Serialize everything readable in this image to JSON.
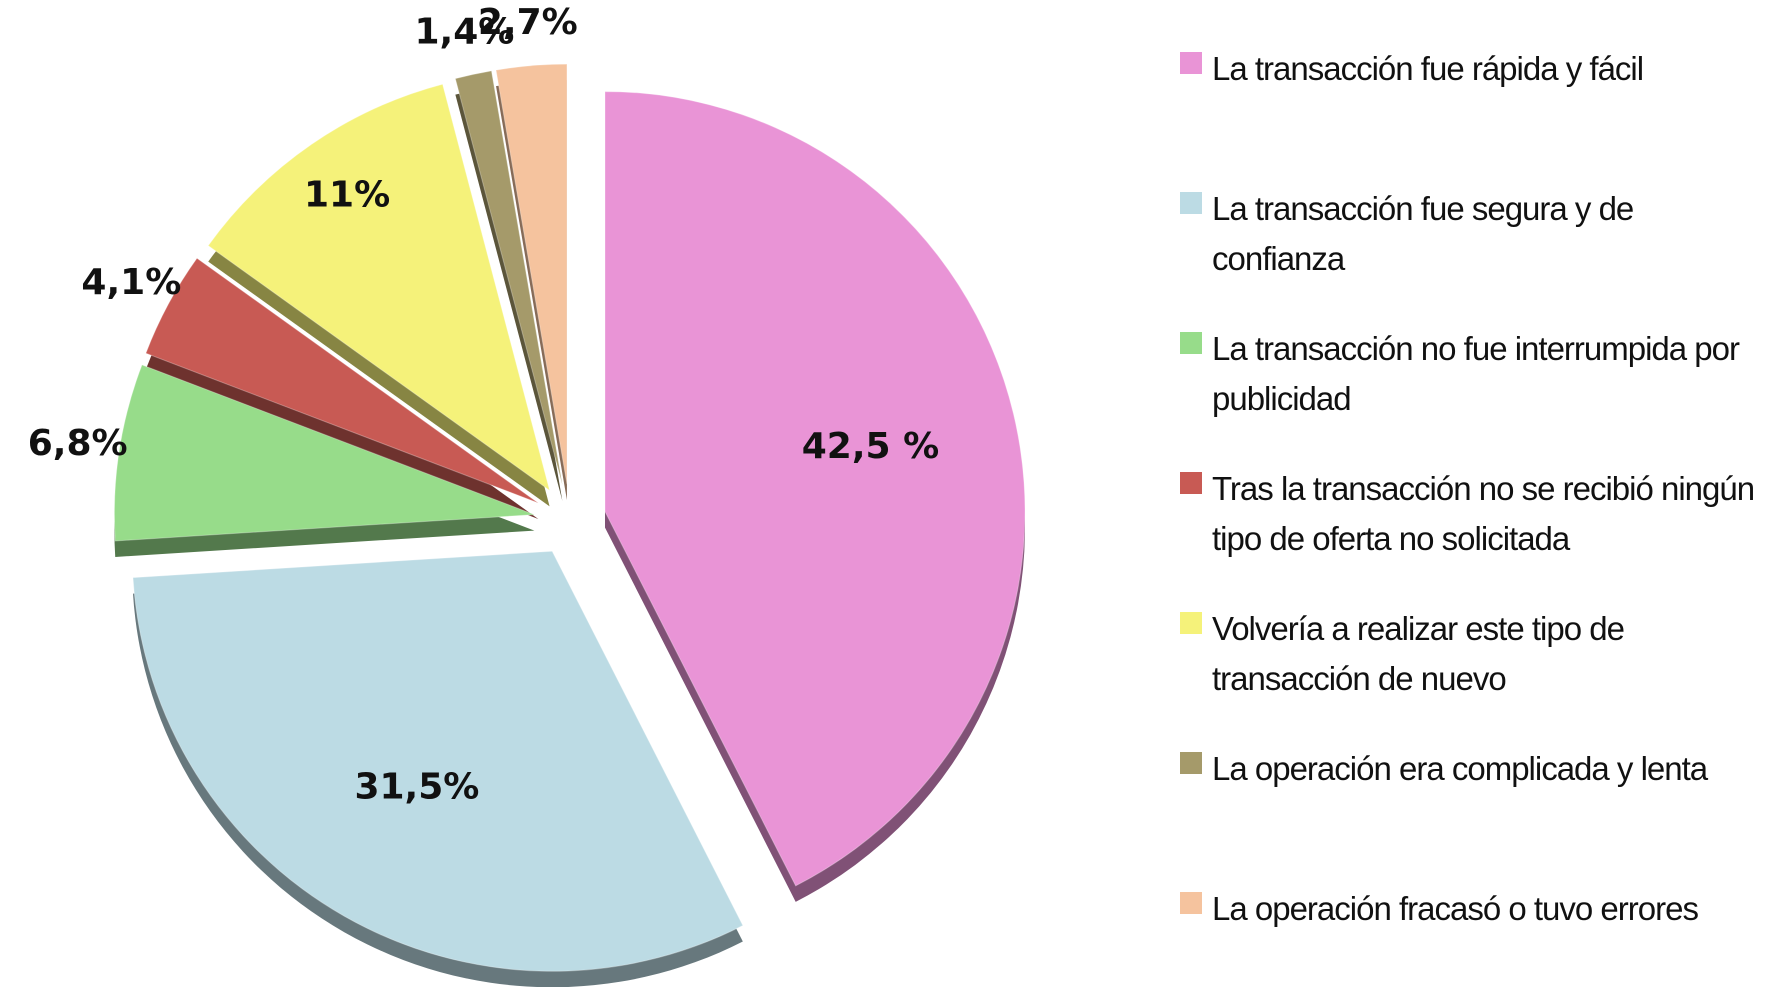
{
  "chart_data": {
    "type": "pie",
    "categories": [
      "La transacción fue rápida y fácil",
      "La transacción fue segura y de confianza",
      "La transacción no fue interrumpida por publicidad",
      "Tras la transacción no se recibió ningún tipo de oferta no solicitada",
      "Volvería a realizar este tipo de transacción de nuevo",
      "La operación era complicada y lenta",
      "La operación fracasó o tuvo errores"
    ],
    "values": [
      42.5,
      31.5,
      6.8,
      4.1,
      11,
      1.4,
      2.7
    ],
    "value_labels": [
      "42,5 %",
      "31,5%",
      "6,8%",
      "4,1%",
      "11%",
      "1,4%",
      "2,7%"
    ],
    "colors": [
      "#e994d6",
      "#bcdbe4",
      "#97dc8a",
      "#c85a54",
      "#f5f27a",
      "#a59a6a",
      "#f5c39e"
    ],
    "legend": "right"
  }
}
